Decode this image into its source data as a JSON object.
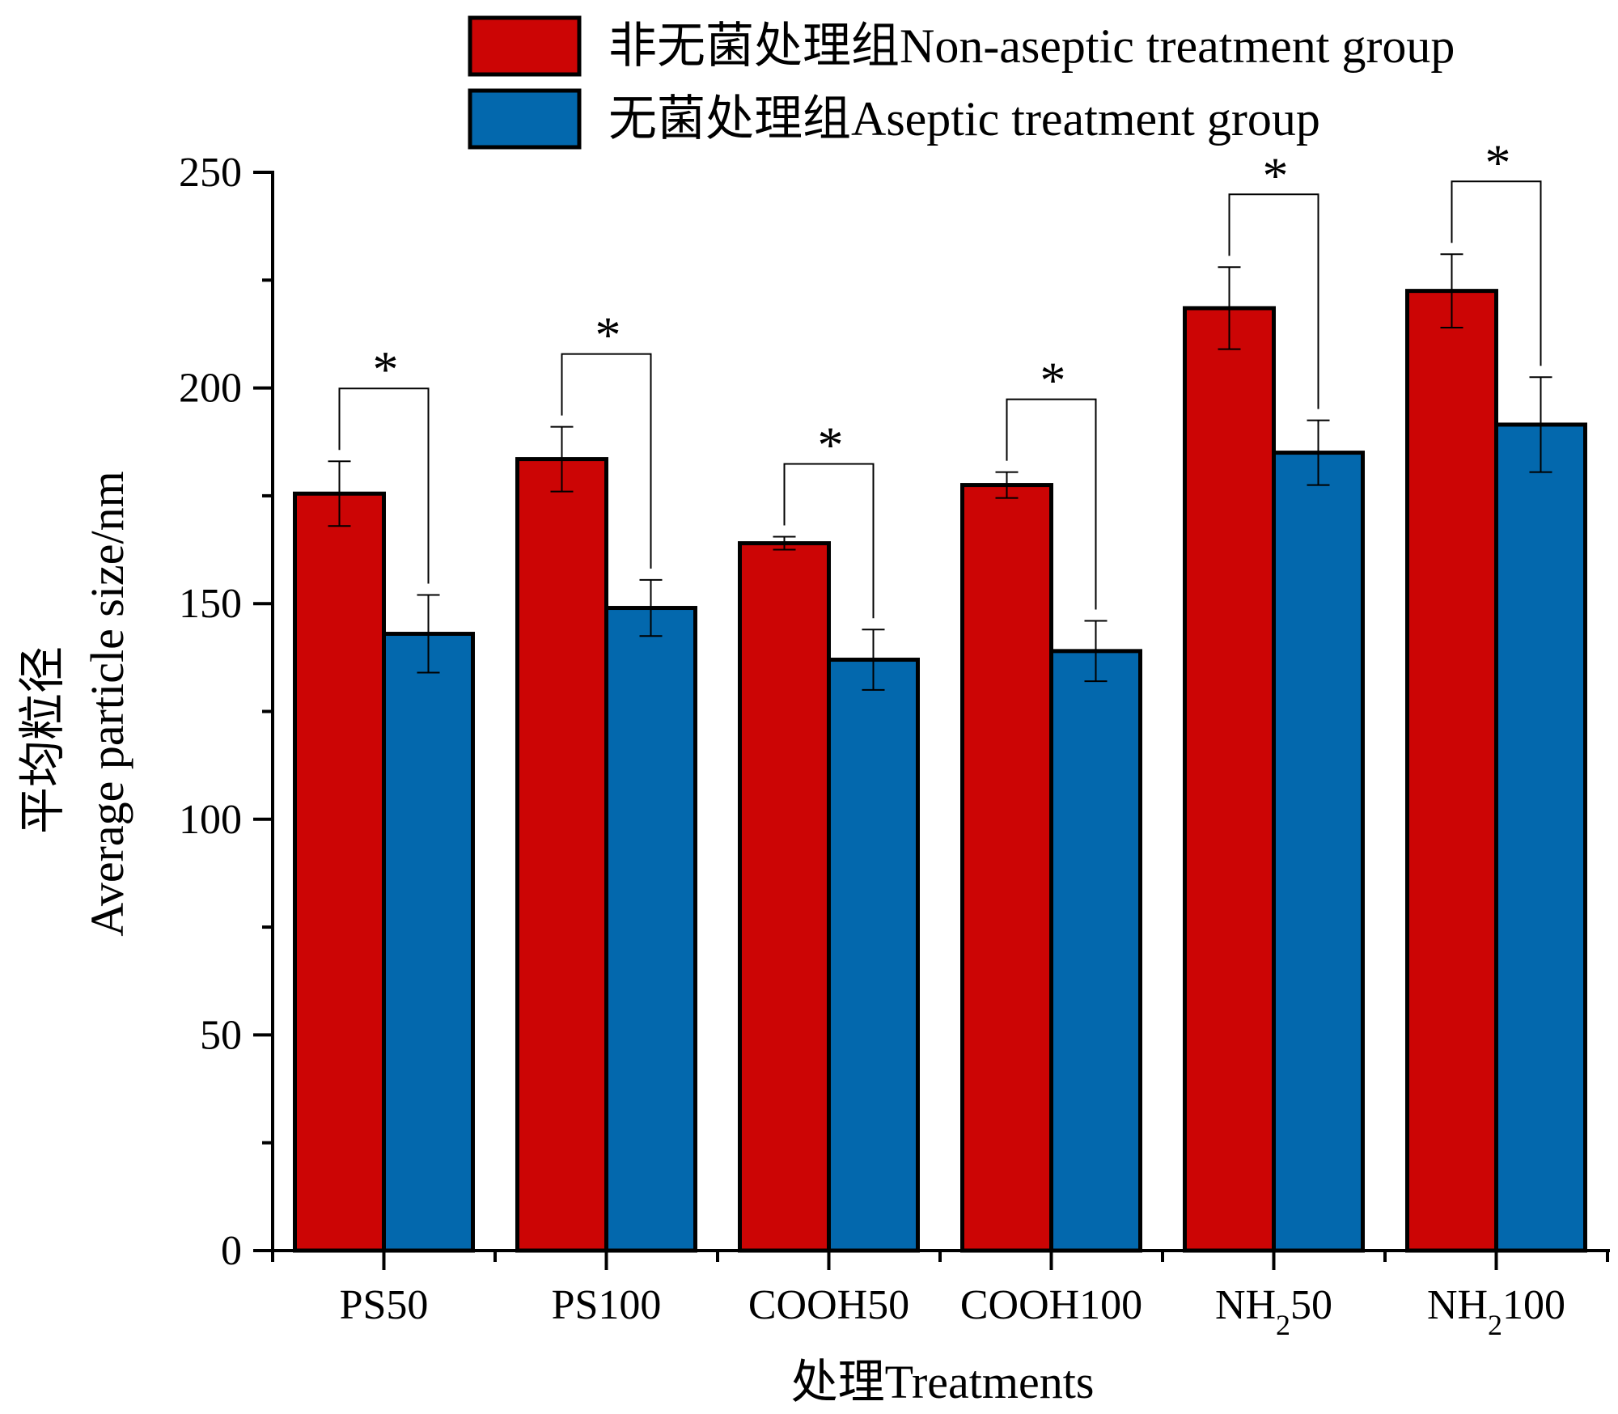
{
  "chart_data": {
    "type": "bar",
    "title": "",
    "xlabel": "处理Treatments",
    "ylabel_cn": "平均粒径",
    "ylabel": "Average particle size/nm",
    "ylim": [
      0,
      250
    ],
    "yticks": [
      0,
      50,
      100,
      150,
      200,
      250
    ],
    "categories": [
      {
        "main": "PS50",
        "sub": "",
        "tail": ""
      },
      {
        "main": "PS100",
        "sub": "",
        "tail": ""
      },
      {
        "main": "COOH50",
        "sub": "",
        "tail": ""
      },
      {
        "main": "COOH100",
        "sub": "",
        "tail": ""
      },
      {
        "main": "NH",
        "sub": "2",
        "tail": "50"
      },
      {
        "main": "NH",
        "sub": "2",
        "tail": "100"
      }
    ],
    "series": [
      {
        "name": "非无菌处理组Non-aseptic treatment group",
        "color": "#CC0505",
        "values": [
          175.5,
          183.5,
          164,
          177.5,
          218.5,
          222.5
        ],
        "errors": [
          7.5,
          7.5,
          1.5,
          3,
          9.5,
          8.5
        ]
      },
      {
        "name": "无菌处理组Aseptic treatment group",
        "color": "#0368AD",
        "values": [
          143,
          149,
          137,
          139,
          185,
          191.5
        ],
        "errors": [
          9,
          6.5,
          7,
          7,
          7.5,
          11
        ]
      }
    ],
    "significance": [
      "*",
      "*",
      "*",
      "*",
      "*",
      "*"
    ],
    "legend_position": "top-right"
  }
}
